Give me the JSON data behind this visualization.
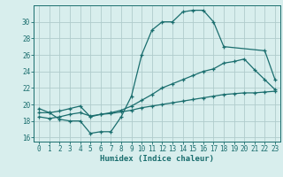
{
  "xlabel": "Humidex (Indice chaleur)",
  "xlim": [
    -0.5,
    23.5
  ],
  "ylim": [
    15.5,
    32.0
  ],
  "yticks": [
    16,
    18,
    20,
    22,
    24,
    26,
    28,
    30
  ],
  "xticks": [
    0,
    1,
    2,
    3,
    4,
    5,
    6,
    7,
    8,
    9,
    10,
    11,
    12,
    13,
    14,
    15,
    16,
    17,
    18,
    19,
    20,
    21,
    22,
    23
  ],
  "bg_color": "#d8eeed",
  "grid_color": "#b0cccc",
  "line_color": "#1a6e6e",
  "series": [
    {
      "x": [
        0,
        1,
        2,
        3,
        4,
        5,
        6,
        7,
        8,
        9,
        10,
        11,
        12,
        13,
        14,
        15,
        16,
        17,
        18,
        22,
        23
      ],
      "y": [
        19.0,
        19.0,
        18.2,
        18.0,
        18.0,
        16.5,
        16.7,
        16.7,
        18.5,
        21.0,
        26.0,
        29.0,
        30.0,
        30.0,
        31.2,
        31.4,
        31.4,
        30.0,
        27.0,
        26.5,
        23.0
      ]
    },
    {
      "x": [
        0,
        1,
        2,
        3,
        4,
        5,
        6,
        7,
        8,
        9,
        10,
        11,
        12,
        13,
        14,
        15,
        16,
        17,
        18,
        19,
        20,
        21,
        22,
        23
      ],
      "y": [
        19.5,
        19.0,
        19.2,
        19.5,
        19.8,
        18.5,
        18.8,
        19.0,
        19.3,
        19.8,
        20.5,
        21.2,
        22.0,
        22.5,
        23.0,
        23.5,
        24.0,
        24.3,
        25.0,
        25.2,
        25.5,
        24.2,
        23.0,
        21.8
      ]
    },
    {
      "x": [
        0,
        1,
        2,
        3,
        4,
        5,
        6,
        7,
        8,
        9,
        10,
        11,
        12,
        13,
        14,
        15,
        16,
        17,
        18,
        19,
        20,
        21,
        22,
        23
      ],
      "y": [
        18.5,
        18.3,
        18.5,
        18.8,
        19.0,
        18.6,
        18.8,
        18.9,
        19.1,
        19.3,
        19.6,
        19.8,
        20.0,
        20.2,
        20.4,
        20.6,
        20.8,
        21.0,
        21.2,
        21.3,
        21.4,
        21.4,
        21.5,
        21.6
      ]
    }
  ]
}
